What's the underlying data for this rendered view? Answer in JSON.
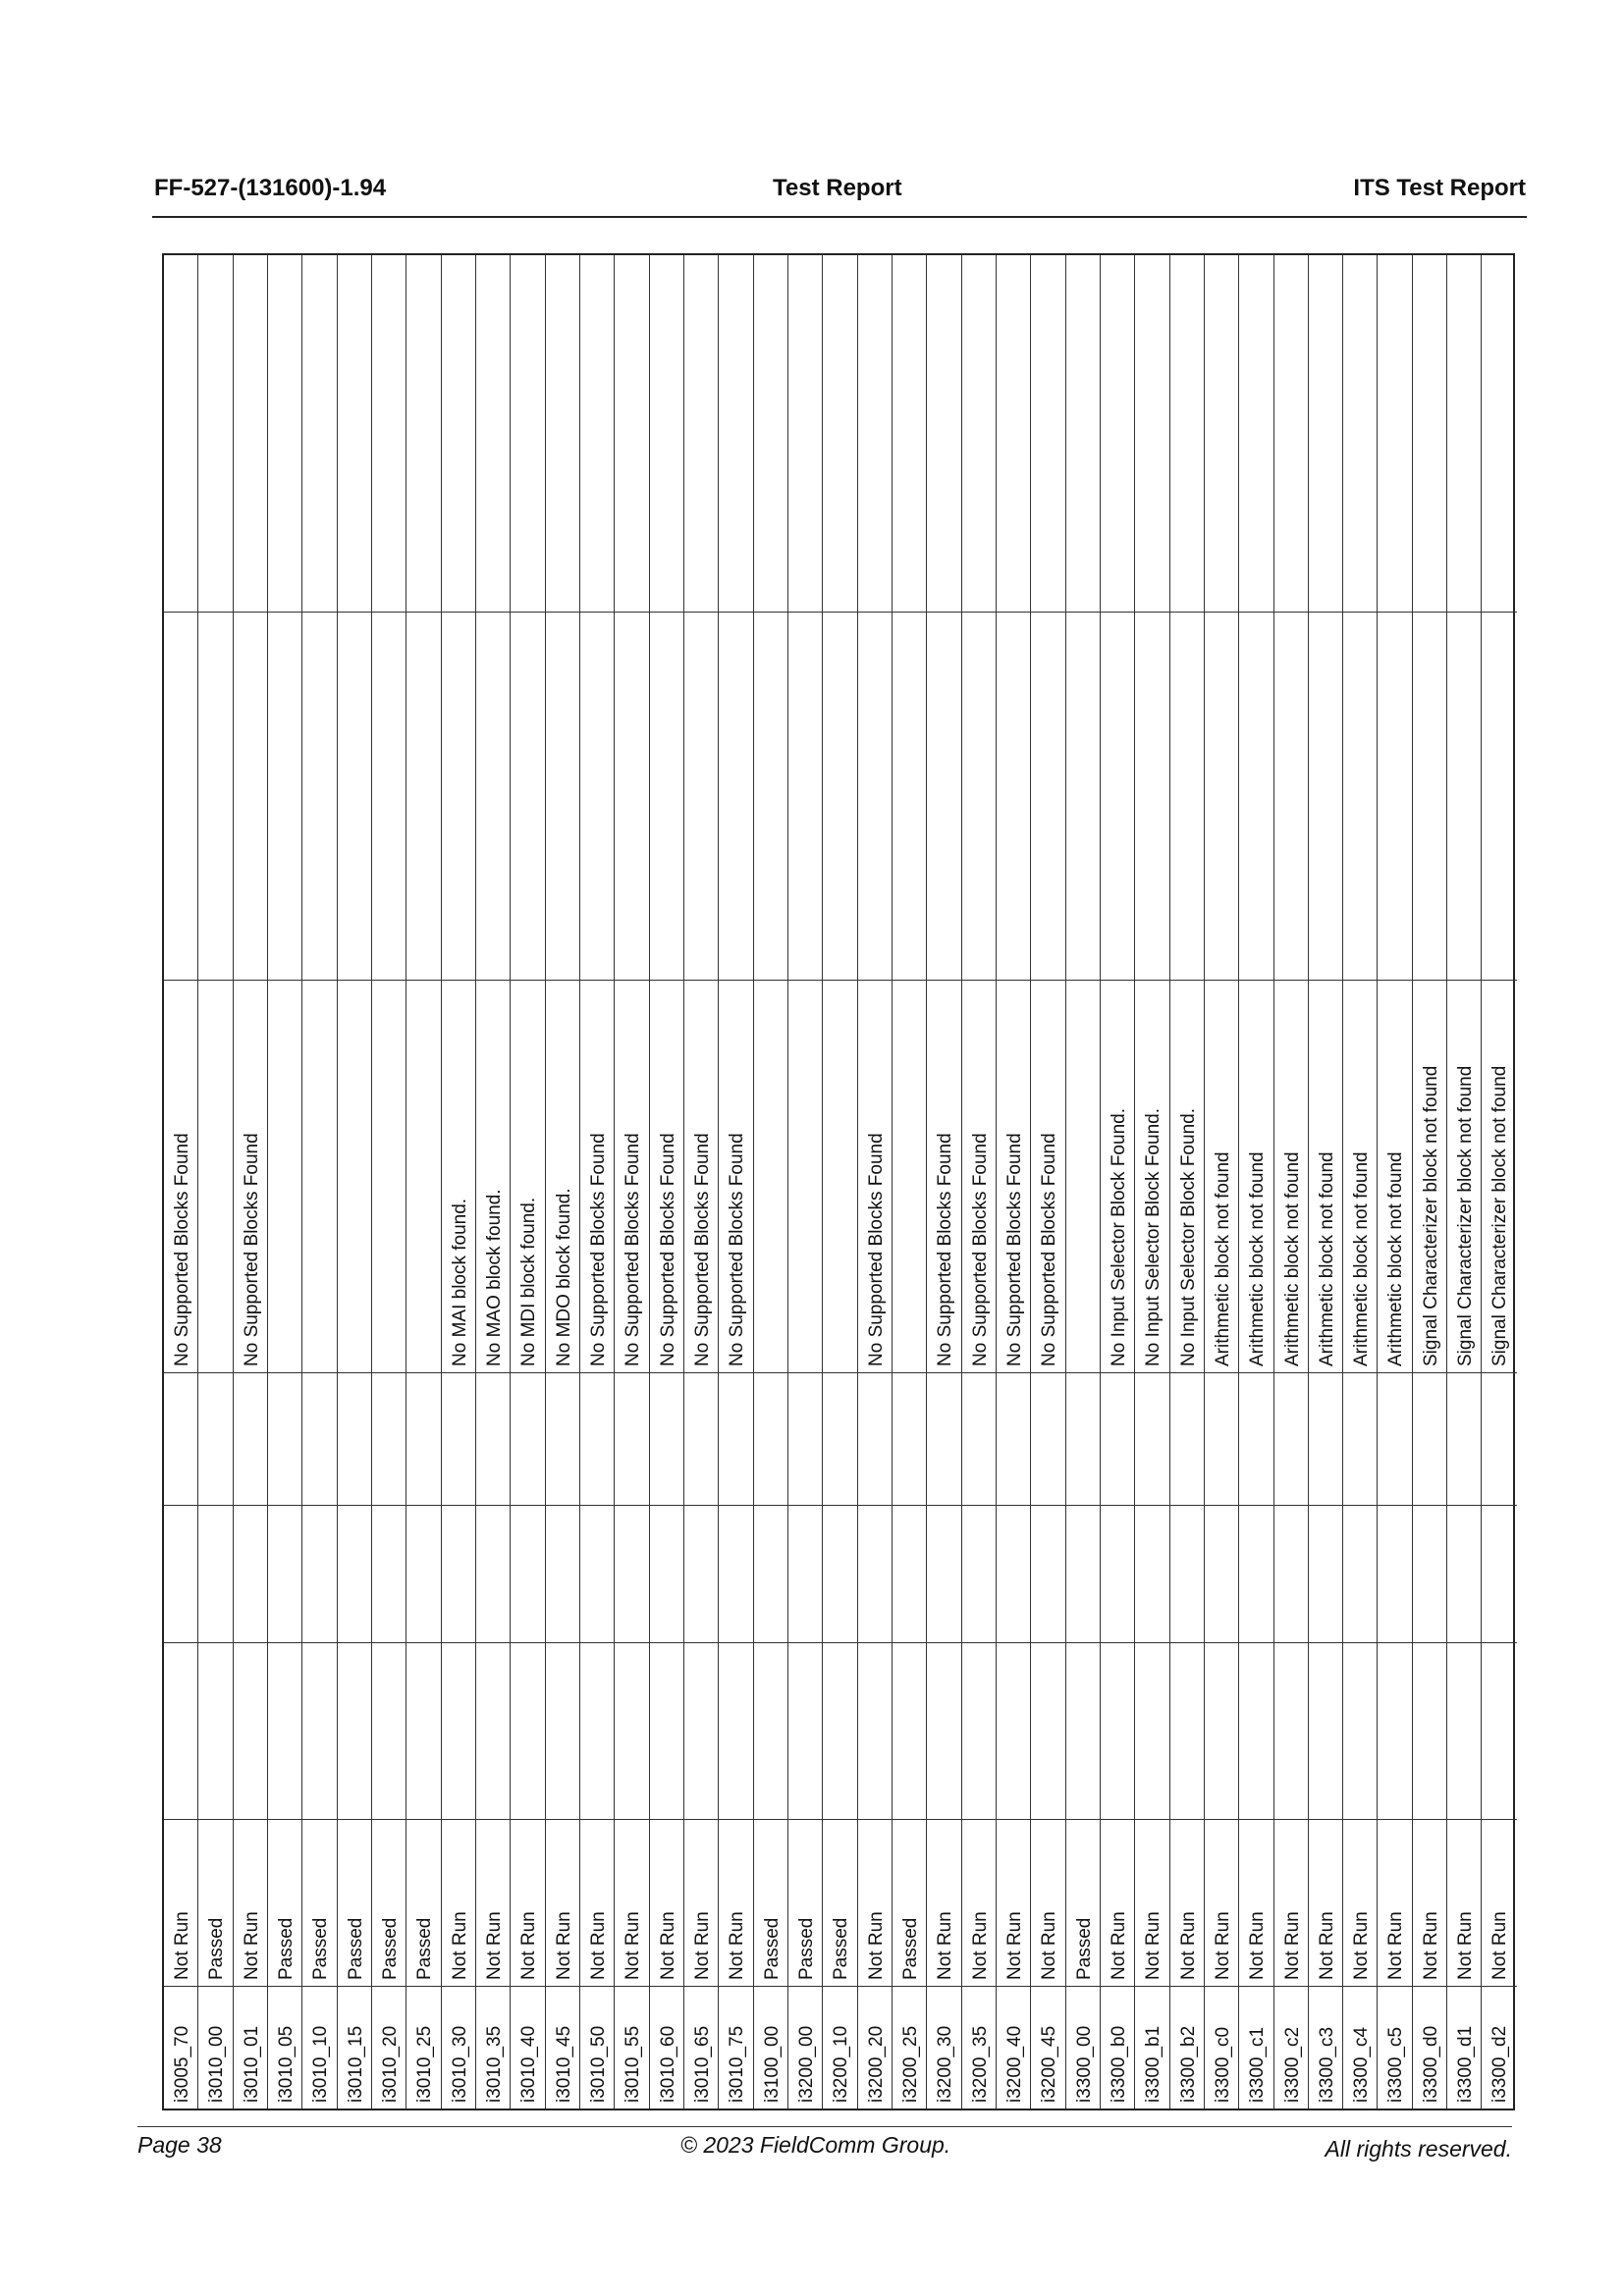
{
  "header": {
    "doc_id": "FF-527-(131600)-1.94",
    "title": "Test Report",
    "section": "ITS Test Report"
  },
  "footer": {
    "page": "Page 38",
    "copyright": "© 2023 FieldComm Group.",
    "rights": "All rights reserved."
  },
  "table": {
    "rows": [
      {
        "id": "i3005_70",
        "result": "Not Run",
        "comment": "No Supported Blocks Found"
      },
      {
        "id": "i3010_00",
        "result": "Passed",
        "comment": ""
      },
      {
        "id": "i3010_01",
        "result": "Not Run",
        "comment": "No Supported Blocks Found"
      },
      {
        "id": "i3010_05",
        "result": "Passed",
        "comment": ""
      },
      {
        "id": "i3010_10",
        "result": "Passed",
        "comment": ""
      },
      {
        "id": "i3010_15",
        "result": "Passed",
        "comment": ""
      },
      {
        "id": "i3010_20",
        "result": "Passed",
        "comment": ""
      },
      {
        "id": "i3010_25",
        "result": "Passed",
        "comment": ""
      },
      {
        "id": "i3010_30",
        "result": "Not Run",
        "comment": "No MAI block found."
      },
      {
        "id": "i3010_35",
        "result": "Not Run",
        "comment": "No MAO block found."
      },
      {
        "id": "i3010_40",
        "result": "Not Run",
        "comment": "No MDI block found."
      },
      {
        "id": "i3010_45",
        "result": "Not Run",
        "comment": "No MDO block found."
      },
      {
        "id": "i3010_50",
        "result": "Not Run",
        "comment": "No Supported Blocks Found"
      },
      {
        "id": "i3010_55",
        "result": "Not Run",
        "comment": "No Supported Blocks Found"
      },
      {
        "id": "i3010_60",
        "result": "Not Run",
        "comment": "No Supported Blocks Found"
      },
      {
        "id": "i3010_65",
        "result": "Not Run",
        "comment": "No Supported Blocks Found"
      },
      {
        "id": "i3010_75",
        "result": "Not Run",
        "comment": "No Supported Blocks Found"
      },
      {
        "id": "i3100_00",
        "result": "Passed",
        "comment": ""
      },
      {
        "id": "i3200_00",
        "result": "Passed",
        "comment": ""
      },
      {
        "id": "i3200_10",
        "result": "Passed",
        "comment": ""
      },
      {
        "id": "i3200_20",
        "result": "Not Run",
        "comment": "No Supported Blocks Found"
      },
      {
        "id": "i3200_25",
        "result": "Passed",
        "comment": ""
      },
      {
        "id": "i3200_30",
        "result": "Not Run",
        "comment": "No Supported Blocks Found"
      },
      {
        "id": "i3200_35",
        "result": "Not Run",
        "comment": "No Supported Blocks Found"
      },
      {
        "id": "i3200_40",
        "result": "Not Run",
        "comment": "No Supported Blocks Found"
      },
      {
        "id": "i3200_45",
        "result": "Not Run",
        "comment": "No Supported Blocks Found"
      },
      {
        "id": "i3300_00",
        "result": "Passed",
        "comment": ""
      },
      {
        "id": "i3300_b0",
        "result": "Not Run",
        "comment": "No Input Selector Block Found."
      },
      {
        "id": "i3300_b1",
        "result": "Not Run",
        "comment": "No Input Selector Block Found."
      },
      {
        "id": "i3300_b2",
        "result": "Not Run",
        "comment": "No Input Selector Block Found."
      },
      {
        "id": "i3300_c0",
        "result": "Not Run",
        "comment": "Arithmetic block not found"
      },
      {
        "id": "i3300_c1",
        "result": "Not Run",
        "comment": "Arithmetic block not found"
      },
      {
        "id": "i3300_c2",
        "result": "Not Run",
        "comment": "Arithmetic block not found"
      },
      {
        "id": "i3300_c3",
        "result": "Not Run",
        "comment": "Arithmetic block not found"
      },
      {
        "id": "i3300_c4",
        "result": "Not Run",
        "comment": "Arithmetic block not found"
      },
      {
        "id": "i3300_c5",
        "result": "Not Run",
        "comment": "Arithmetic block not found"
      },
      {
        "id": "i3300_d0",
        "result": "Not Run",
        "comment": "Signal Characterizer block not found"
      },
      {
        "id": "i3300_d1",
        "result": "Not Run",
        "comment": "Signal Characterizer block not found"
      },
      {
        "id": "i3300_d2",
        "result": "Not Run",
        "comment": "Signal Characterizer block not found"
      }
    ]
  }
}
